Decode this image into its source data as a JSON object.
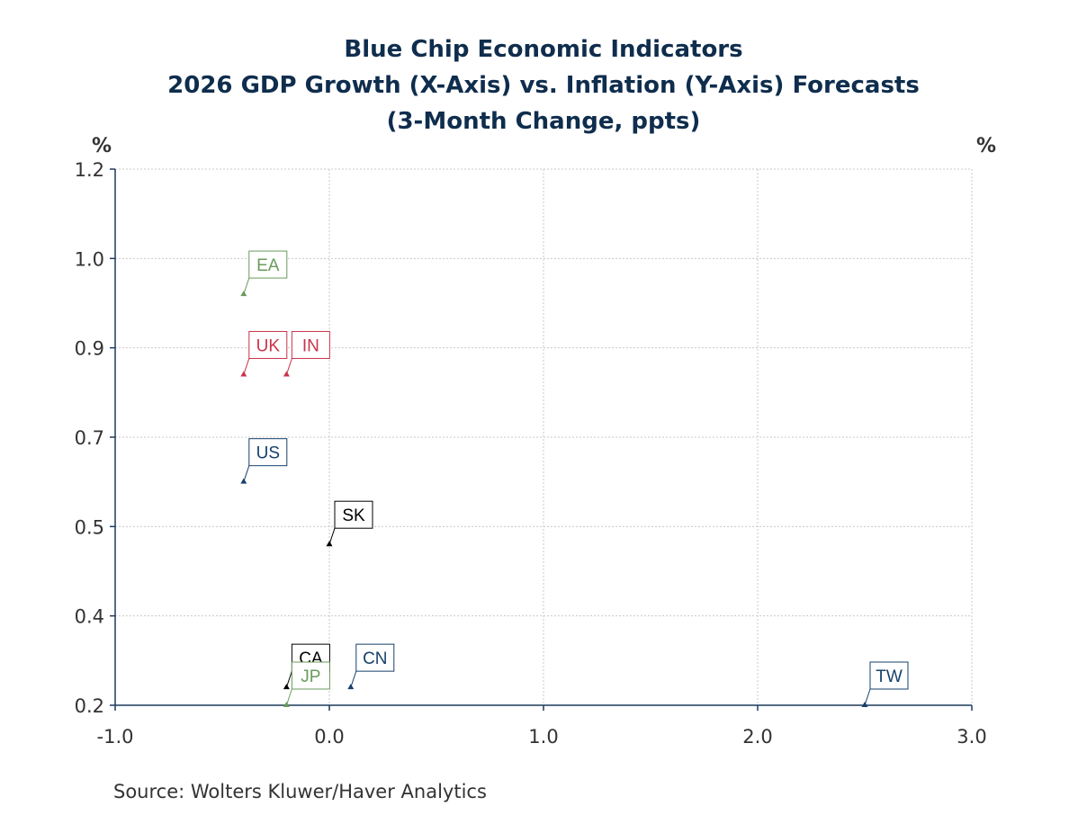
{
  "title_lines": [
    "Blue Chip Economic Indicators",
    "2026 GDP Growth (X-Axis) vs. Inflation (Y-Axis) Forecasts",
    "(3-Month Change, ppts)"
  ],
  "left_unit": "%",
  "right_unit": "%",
  "source": "Source:  Wolters Kluwer/Haver Analytics",
  "chart_data": {
    "type": "scatter",
    "title": "Blue Chip Economic Indicators 2026 GDP Growth (X-Axis) vs. Inflation (Y-Axis) Forecasts (3-Month Change, ppts)",
    "xlabel": "",
    "ylabel": "%",
    "xlim": [
      -1.0,
      3.0
    ],
    "ylim": [
      0.2,
      1.2
    ],
    "x_ticks": [
      -1.0,
      0.0,
      1.0,
      2.0,
      3.0
    ],
    "x_tick_labels": [
      "-1.0",
      "0.0",
      "1.0",
      "2.0",
      "3.0"
    ],
    "y_ticks": [
      0.2,
      0.4,
      0.5,
      0.7,
      0.9,
      1.0,
      1.2
    ],
    "y_tick_labels": [
      "0.2",
      "0.4",
      "0.5",
      "0.7",
      "0.9",
      "1.0",
      "1.2"
    ],
    "grid": true,
    "points": [
      {
        "label": "EA",
        "x": -0.4,
        "y": 0.96,
        "color": "#6a9a5b"
      },
      {
        "label": "UK",
        "x": -0.4,
        "y": 0.84,
        "color": "#c8344a"
      },
      {
        "label": "IN",
        "x": -0.2,
        "y": 0.84,
        "color": "#c8344a"
      },
      {
        "label": "US",
        "x": -0.4,
        "y": 0.6,
        "color": "#16406b"
      },
      {
        "label": "SK",
        "x": 0.0,
        "y": 0.48,
        "color": "#000000"
      },
      {
        "label": "CA",
        "x": -0.2,
        "y": 0.24,
        "color": "#000000"
      },
      {
        "label": "CN",
        "x": 0.1,
        "y": 0.24,
        "color": "#16406b"
      },
      {
        "label": "JP",
        "x": -0.2,
        "y": 0.12,
        "color": "#6a9a5b"
      },
      {
        "label": "TW",
        "x": 2.5,
        "y": 0.12,
        "color": "#16406b"
      }
    ]
  }
}
